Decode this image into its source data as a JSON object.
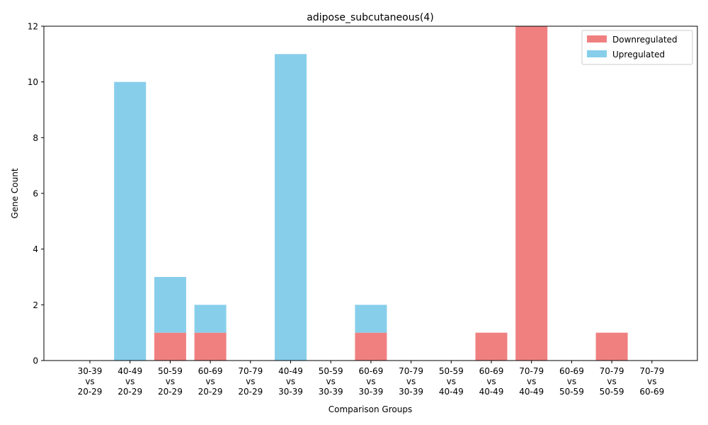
{
  "chart_data": {
    "type": "bar",
    "stacked": true,
    "title": "adipose_subcutaneous(4)",
    "xlabel": "Comparison Groups",
    "ylabel": "Gene Count",
    "ylim": [
      0,
      12
    ],
    "yticks": [
      "0",
      "2",
      "4",
      "6",
      "8",
      "10",
      "12"
    ],
    "grid": false,
    "legend_position": "top-right",
    "categories": [
      [
        "30-39",
        "vs",
        "20-29"
      ],
      [
        "40-49",
        "vs",
        "20-29"
      ],
      [
        "50-59",
        "vs",
        "20-29"
      ],
      [
        "60-69",
        "vs",
        "20-29"
      ],
      [
        "70-79",
        "vs",
        "20-29"
      ],
      [
        "40-49",
        "vs",
        "30-39"
      ],
      [
        "50-59",
        "vs",
        "30-39"
      ],
      [
        "60-69",
        "vs",
        "30-39"
      ],
      [
        "70-79",
        "vs",
        "30-39"
      ],
      [
        "50-59",
        "vs",
        "40-49"
      ],
      [
        "60-69",
        "vs",
        "40-49"
      ],
      [
        "70-79",
        "vs",
        "40-49"
      ],
      [
        "60-69",
        "vs",
        "50-59"
      ],
      [
        "70-79",
        "vs",
        "50-59"
      ],
      [
        "70-79",
        "vs",
        "60-69"
      ]
    ],
    "series": [
      {
        "name": "Downregulated",
        "color": "#f08080",
        "values": [
          0,
          0,
          1,
          1,
          0,
          0,
          0,
          1,
          0,
          0,
          1,
          12,
          0,
          1,
          0
        ]
      },
      {
        "name": "Upregulated",
        "color": "#87ceeb",
        "values": [
          0,
          10,
          2,
          1,
          0,
          11,
          0,
          1,
          0,
          0,
          0,
          0,
          0,
          0,
          0
        ]
      }
    ]
  }
}
